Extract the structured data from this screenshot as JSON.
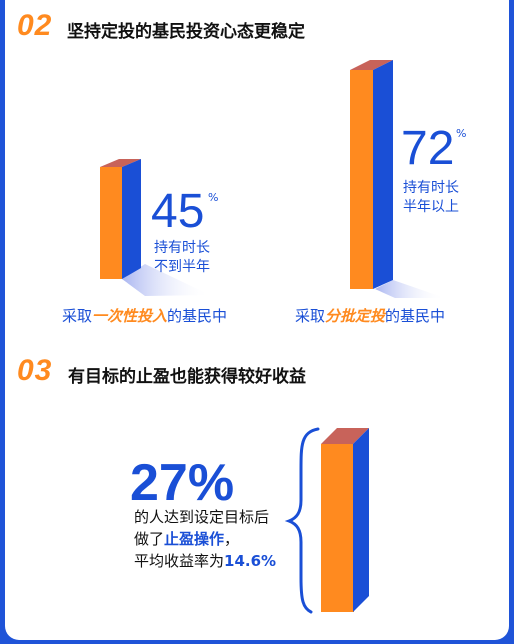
{
  "section2": {
    "number": "02",
    "title": "坚持定投的基民投资心态更稳定",
    "left": {
      "value": "45",
      "unit": "%",
      "desc_line1": "持有时长",
      "desc_line2": "不到半年",
      "caption_pre": "采取",
      "caption_highlight": "一次性投入",
      "caption_post": "的基民中"
    },
    "right": {
      "value": "72",
      "unit": "%",
      "desc_line1": "持有时长",
      "desc_line2": "半年以上",
      "caption_pre": "采取",
      "caption_highlight": "分批定投",
      "caption_post": "的基民中"
    }
  },
  "section3": {
    "number": "03",
    "title": "有目标的止盈也能获得较好收益",
    "value": "27%",
    "line1": "的人达到设定目标后",
    "line2_pre": "做了",
    "line2_highlight": "止盈操作",
    "line2_post": "，",
    "line3_pre": "平均收益率为",
    "line3_highlight": "14.6%"
  },
  "colors": {
    "accent_blue": "#1a4fd6",
    "accent_orange": "#ff8a1f",
    "bar_top": "#c8635a",
    "background": "#1f54d8"
  }
}
